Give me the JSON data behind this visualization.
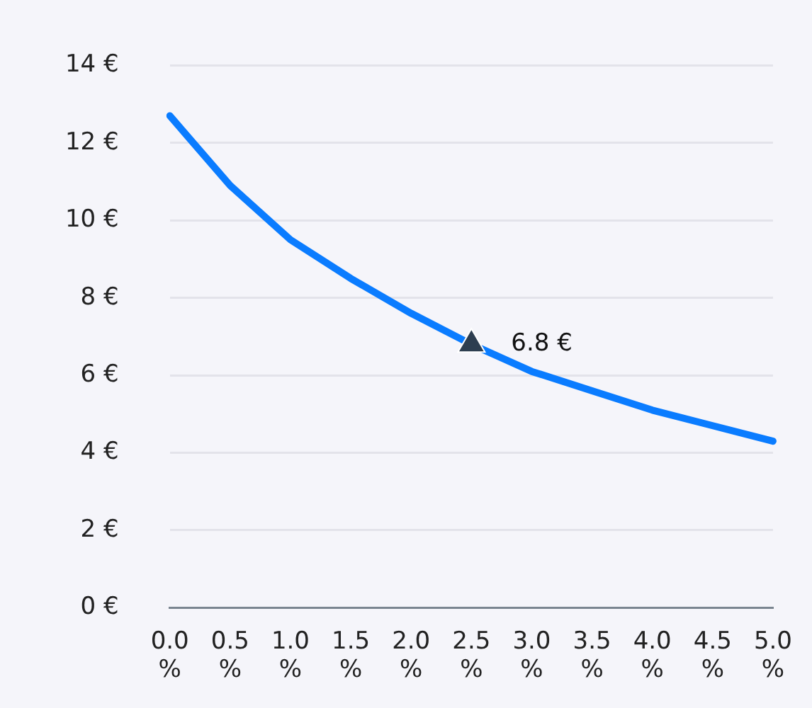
{
  "chart_data": {
    "type": "line",
    "categories": [
      "0.0 %",
      "0.5 %",
      "1.0 %",
      "1.5 %",
      "2.0 %",
      "2.5 %",
      "3.0 %",
      "3.5 %",
      "4.0 %",
      "4.5 %",
      "5.0 %"
    ],
    "series": [
      {
        "color": "#0a7cff",
        "values": [
          12.7,
          10.9,
          9.5,
          8.5,
          7.6,
          6.8,
          6.1,
          5.6,
          5.1,
          4.7,
          4.3
        ],
        "marker": "none"
      },
      {
        "type": "scatter",
        "color": "#2d3e50",
        "values": [
          null,
          null,
          null,
          null,
          null,
          6.8,
          null,
          null,
          null,
          null,
          null
        ],
        "marker": "triangle"
      }
    ],
    "annotations": [
      {
        "text": "6.8 €",
        "x": "2.5 %",
        "y": 6.8
      }
    ],
    "ylim": [
      0,
      14
    ],
    "yticks": [
      {
        "value": 0,
        "label": "0 €"
      },
      {
        "value": 2,
        "label": "2 €"
      },
      {
        "value": 4,
        "label": "4 €"
      },
      {
        "value": 6,
        "label": "6 €"
      },
      {
        "value": 8,
        "label": "8 €"
      },
      {
        "value": 10,
        "label": "10 €"
      },
      {
        "value": 12,
        "label": "12 €"
      },
      {
        "value": 14,
        "label": "14 €"
      }
    ],
    "grid": "y",
    "legend": false
  }
}
